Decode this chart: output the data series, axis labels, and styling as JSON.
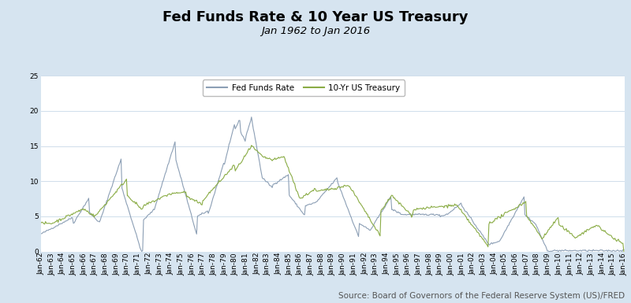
{
  "title": "Fed Funds Rate & 10 Year US Treasury",
  "subtitle": "Jan 1962 to Jan 2016",
  "source": "Source: Board of Governors of the Federal Reserve System (US)/FRED",
  "legend_labels": [
    "Fed Funds Rate",
    "10-Yr US Treasury"
  ],
  "ffr_color": "#8c9fb5",
  "tsy_color": "#8aac45",
  "bg_outer": "#d6e4f0",
  "bg_inner": "#ffffff",
  "grid_color": "#c8d8e8",
  "ylim": [
    0,
    25
  ],
  "yticks": [
    0,
    5,
    10,
    15,
    20,
    25
  ],
  "title_fontsize": 13,
  "subtitle_fontsize": 9.5,
  "source_fontsize": 7.5,
  "axis_label_fontsize": 6.5
}
